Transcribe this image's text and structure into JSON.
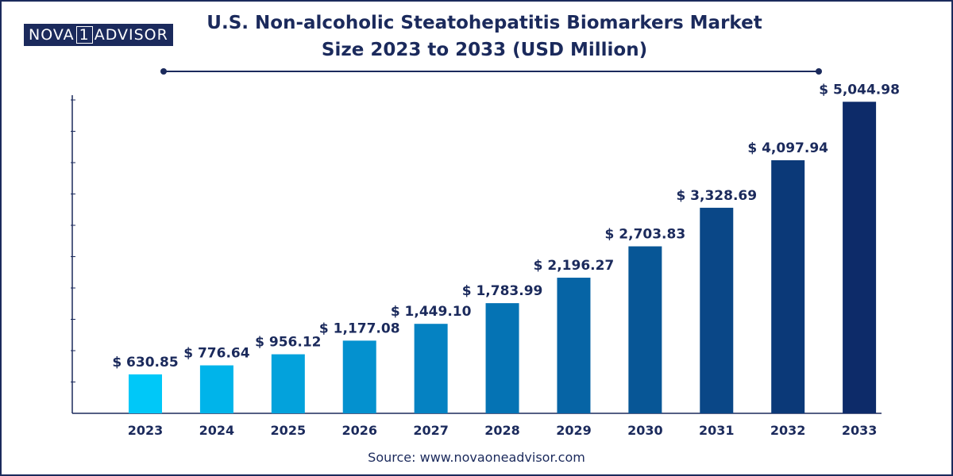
{
  "brand": {
    "logo_left": "NOVA",
    "logo_mid": "1",
    "logo_right": "ADVISOR"
  },
  "chart_data": {
    "type": "bar",
    "title": "U.S. Non-alcoholic Steatohepatitis Biomarkers Market Size 2023 to 2033 (USD Million)",
    "xlabel": "",
    "ylabel": "",
    "ylim": [
      0,
      5100
    ],
    "grid": false,
    "categories": [
      "2023",
      "2024",
      "2025",
      "2026",
      "2027",
      "2028",
      "2029",
      "2030",
      "2031",
      "2032",
      "2033"
    ],
    "values": [
      630.85,
      776.64,
      956.12,
      1177.08,
      1449.1,
      1783.99,
      2196.27,
      2703.83,
      3328.69,
      4097.94,
      5044.98
    ],
    "value_labels": [
      "$ 630.85",
      "$ 776.64",
      "$ 956.12",
      "$ 1,177.08",
      "$ 1,449.10",
      "$ 1,783.99",
      "$ 2,196.27",
      "$ 2,703.83",
      "$ 3,328.69",
      "$ 4,097.94",
      "$ 5,044.98"
    ],
    "bar_colors": [
      "#00c8f8",
      "#00b4ea",
      "#03a2dc",
      "#0491cf",
      "#0582c2",
      "#0573b4",
      "#0664a5",
      "#075696",
      "#0a4787",
      "#0b3978",
      "#0d2b69"
    ]
  },
  "source": "Source: www.novaoneadvisor.com"
}
